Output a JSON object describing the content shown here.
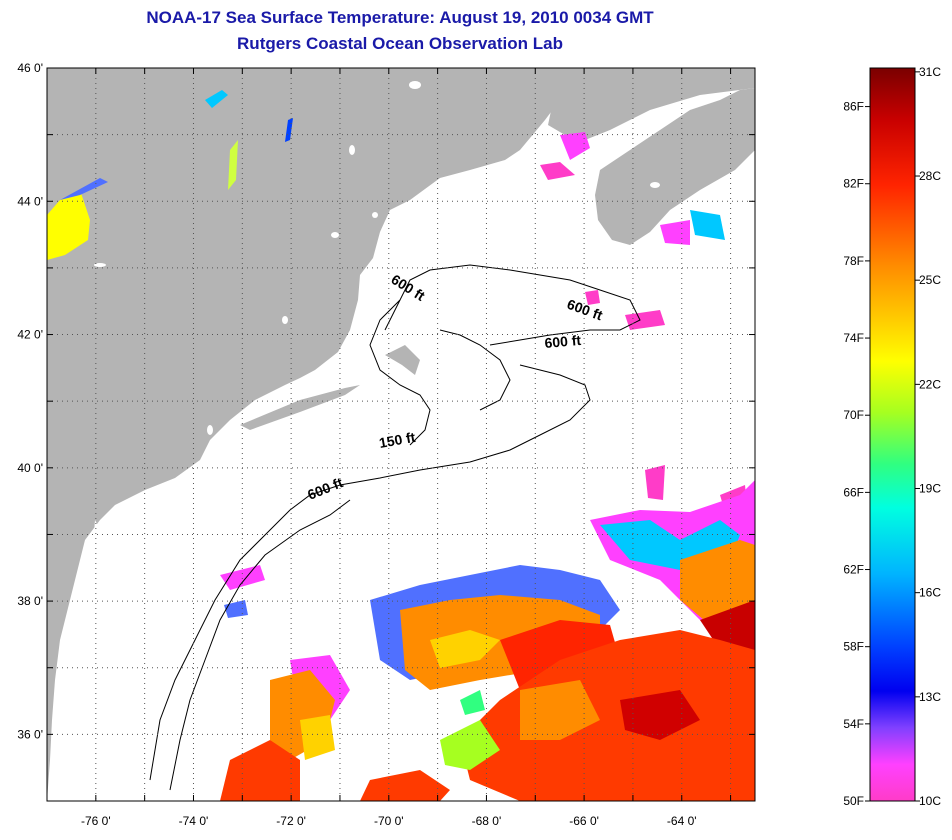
{
  "title_line1": "NOAA-17 Sea Surface Temperature:  August 19, 2010 0034 GMT",
  "title_line2": "Rutgers Coastal Ocean Observation Lab",
  "map": {
    "lon_ticks": [
      "-76 0'",
      "-74 0'",
      "-72 0'",
      "-70 0'",
      "-68 0'",
      "-66 0'",
      "-64 0'"
    ],
    "lat_ticks": [
      "46 0'",
      "44 0'",
      "42 0'",
      "40 0'",
      "38 0'",
      "36 0'"
    ],
    "lon_range": [
      -77,
      -62.5
    ],
    "lat_range": [
      35,
      46
    ],
    "contour_labels": [
      "600 ft",
      "600 ft",
      "600 ft",
      "150 ft",
      "600 ft"
    ],
    "colors": {
      "land": "#b4b4b4",
      "ocean_nodata": "#ffffff",
      "grid": "#555555"
    }
  },
  "colorbar": {
    "fahrenheit_labels": [
      "86F",
      "82F",
      "78F",
      "74F",
      "70F",
      "66F",
      "62F",
      "58F",
      "54F",
      "50F"
    ],
    "celsius_labels": [
      "31C",
      "28C",
      "25C",
      "22C",
      "19C",
      "16C",
      "13C",
      "10C"
    ],
    "range_f": [
      50,
      88
    ],
    "gradient_colors": [
      "#7a0000",
      "#d00000",
      "#ff3a00",
      "#ff8c00",
      "#ffd200",
      "#ffff00",
      "#a6ff20",
      "#30ff80",
      "#00ffe0",
      "#00c8ff",
      "#0060ff",
      "#0000f0",
      "#8040ff",
      "#ff40ff",
      "#ff3cc8"
    ]
  }
}
